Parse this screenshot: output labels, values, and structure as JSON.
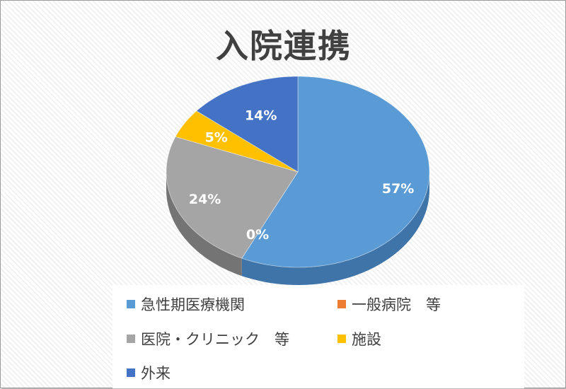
{
  "chart_data": {
    "type": "pie",
    "title": "入院連携",
    "style": "3d",
    "legend_position": "bottom",
    "slices": [
      {
        "name": "急性期医療機関",
        "value": 57,
        "label": "57%",
        "color": "#5B9BD5",
        "side_color": "#3f74a8"
      },
      {
        "name": "一般病院　等",
        "value": 0,
        "label": "0%",
        "color": "#ED7D31",
        "side_color": "#b85f22"
      },
      {
        "name": "医院・クリニック　等",
        "value": 24,
        "label": "24%",
        "color": "#A5A5A5",
        "side_color": "#747474"
      },
      {
        "name": "施設",
        "value": 5,
        "label": "5%",
        "color": "#FFC000",
        "side_color": "#c99400"
      },
      {
        "name": "外来",
        "value": 14,
        "label": "14%",
        "color": "#4472C4",
        "side_color": "#2f5597"
      }
    ]
  }
}
